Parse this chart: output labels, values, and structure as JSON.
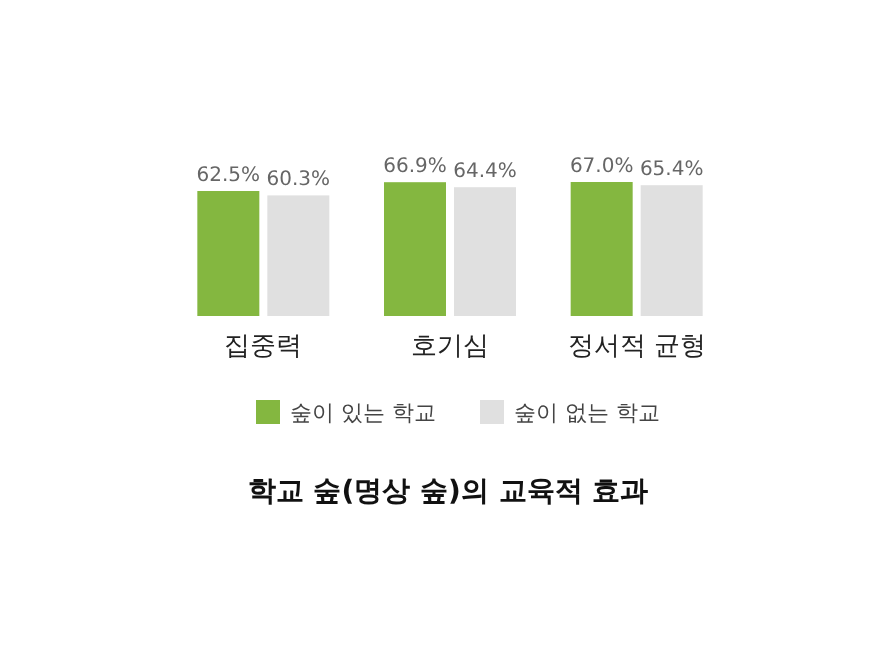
{
  "chart_data": {
    "type": "bar",
    "title": "학교 숲(명상 숲)의 교육적 효과",
    "categories": [
      "집중력",
      "호기심",
      "정서적 균형"
    ],
    "legend": "bottom",
    "series": [
      {
        "name": "숲이 있는 학교",
        "color": "#84b740",
        "values": [
          62.5,
          66.9,
          67.0
        ],
        "value_labels": [
          "62.5%",
          "66.9%",
          "67.0%"
        ]
      },
      {
        "name": "숲이 없는 학교",
        "color": "#e0e0e0",
        "values": [
          60.3,
          64.4,
          65.4
        ],
        "value_labels": [
          "60.3%",
          "64.4%",
          "65.4%"
        ]
      }
    ]
  }
}
